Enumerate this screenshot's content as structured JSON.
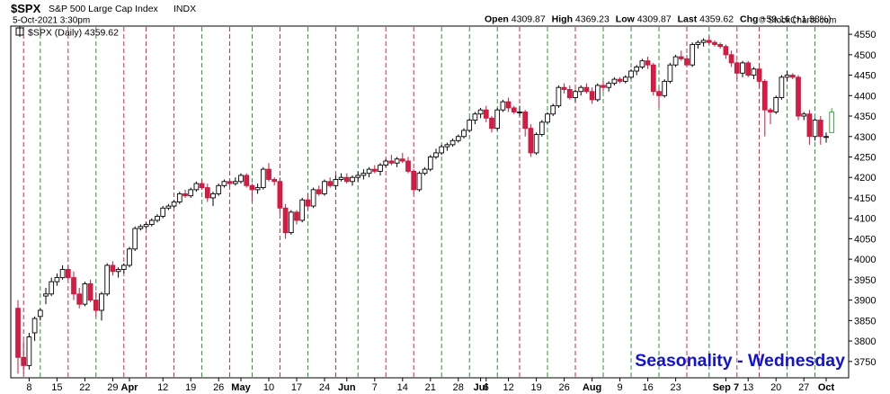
{
  "header": {
    "symbol": "$SPX",
    "name": "S&P 500 Large Cap Index",
    "exchange": "INDX",
    "datetime": "5-Oct-2021 3:30pm",
    "open_label": "Open",
    "open": "4309.87",
    "high_label": "High",
    "high": "4369.23",
    "low_label": "Low",
    "low": "4309.87",
    "last_label": "Last",
    "last": "4359.62",
    "chg_label": "Chg",
    "chg": "+59.16 (+1.38%)",
    "watermark": "© StockCharts.com",
    "legend": "$SPX (Daily) 4359.62"
  },
  "annotation": "Seasonality - Wednesday",
  "chart_data": {
    "type": "candlestick",
    "ylim": [
      3710,
      4570
    ],
    "y_ticks": [
      3750,
      3800,
      3850,
      3900,
      3950,
      4000,
      4050,
      4100,
      4150,
      4200,
      4250,
      4300,
      4350,
      4400,
      4450,
      4500,
      4550
    ],
    "x_labels": [
      {
        "label": "8",
        "bar": 2
      },
      {
        "label": "15",
        "bar": 7
      },
      {
        "label": "22",
        "bar": 12
      },
      {
        "label": "29",
        "bar": 17
      },
      {
        "label": "Apr",
        "bar": 20,
        "month": true
      },
      {
        "label": "12",
        "bar": 26
      },
      {
        "label": "19",
        "bar": 31
      },
      {
        "label": "26",
        "bar": 36
      },
      {
        "label": "May",
        "bar": 40,
        "month": true
      },
      {
        "label": "10",
        "bar": 45
      },
      {
        "label": "17",
        "bar": 50
      },
      {
        "label": "24",
        "bar": 55
      },
      {
        "label": "Jun",
        "bar": 59,
        "month": true
      },
      {
        "label": "7",
        "bar": 64
      },
      {
        "label": "14",
        "bar": 69
      },
      {
        "label": "21",
        "bar": 74
      },
      {
        "label": "28",
        "bar": 79
      },
      {
        "label": "Jul",
        "bar": 83,
        "month": true
      },
      {
        "label": "6",
        "bar": 84
      },
      {
        "label": "12",
        "bar": 88
      },
      {
        "label": "19",
        "bar": 93
      },
      {
        "label": "26",
        "bar": 98
      },
      {
        "label": "Aug",
        "bar": 103,
        "month": true
      },
      {
        "label": "9",
        "bar": 108
      },
      {
        "label": "16",
        "bar": 113
      },
      {
        "label": "23",
        "bar": 118
      },
      {
        "label": "Sep 7",
        "bar": 127,
        "month": true
      },
      {
        "label": "13",
        "bar": 131
      },
      {
        "label": "20",
        "bar": 136
      },
      {
        "label": "27",
        "bar": 141
      },
      {
        "label": "Oct",
        "bar": 145,
        "month": true
      }
    ],
    "wednesday_lines": [
      {
        "bar": 1,
        "color": "red"
      },
      {
        "bar": 4,
        "color": "green"
      },
      {
        "bar": 9,
        "color": "red"
      },
      {
        "bar": 14,
        "color": "green"
      },
      {
        "bar": 19,
        "color": "red"
      },
      {
        "bar": 23,
        "color": "red"
      },
      {
        "bar": 28,
        "color": "red"
      },
      {
        "bar": 33,
        "color": "green"
      },
      {
        "bar": 38,
        "color": "red"
      },
      {
        "bar": 42,
        "color": "green"
      },
      {
        "bar": 47,
        "color": "red"
      },
      {
        "bar": 52,
        "color": "green"
      },
      {
        "bar": 57,
        "color": "red"
      },
      {
        "bar": 61,
        "color": "green"
      },
      {
        "bar": 66,
        "color": "red"
      },
      {
        "bar": 71,
        "color": "red"
      },
      {
        "bar": 76,
        "color": "green"
      },
      {
        "bar": 81,
        "color": "green"
      },
      {
        "bar": 86,
        "color": "green"
      },
      {
        "bar": 90,
        "color": "red"
      },
      {
        "bar": 95,
        "color": "green"
      },
      {
        "bar": 100,
        "color": "red"
      },
      {
        "bar": 105,
        "color": "green"
      },
      {
        "bar": 110,
        "color": "green"
      },
      {
        "bar": 115,
        "color": "green"
      },
      {
        "bar": 120,
        "color": "red"
      },
      {
        "bar": 124,
        "color": "green"
      },
      {
        "bar": 129,
        "color": "red"
      },
      {
        "bar": 133,
        "color": "red"
      },
      {
        "bar": 138,
        "color": "green"
      },
      {
        "bar": 143,
        "color": "green"
      }
    ],
    "candles": [
      [
        3880,
        3900,
        3720,
        3760
      ],
      [
        3760,
        3800,
        3720,
        3740
      ],
      [
        3740,
        3820,
        3730,
        3810
      ],
      [
        3820,
        3860,
        3800,
        3855
      ],
      [
        3860,
        3880,
        3850,
        3875
      ],
      [
        3910,
        3930,
        3890,
        3915
      ],
      [
        3915,
        3955,
        3910,
        3945
      ],
      [
        3945,
        3965,
        3935,
        3955
      ],
      [
        3955,
        3985,
        3950,
        3975
      ],
      [
        3975,
        3985,
        3950,
        3955
      ],
      [
        3955,
        3970,
        3900,
        3915
      ],
      [
        3915,
        3930,
        3880,
        3890
      ],
      [
        3890,
        3945,
        3885,
        3940
      ],
      [
        3940,
        3950,
        3895,
        3900
      ],
      [
        3900,
        3920,
        3860,
        3875
      ],
      [
        3875,
        3920,
        3850,
        3915
      ],
      [
        3915,
        3990,
        3910,
        3985
      ],
      [
        3985,
        3995,
        3960,
        3970
      ],
      [
        3970,
        3980,
        3955,
        3975
      ],
      [
        3975,
        3990,
        3965,
        3985
      ],
      [
        3985,
        4030,
        3980,
        4025
      ],
      [
        4025,
        4080,
        4020,
        4075
      ],
      [
        4075,
        4085,
        4070,
        4080
      ],
      [
        4080,
        4090,
        4075,
        4085
      ],
      [
        4085,
        4100,
        4080,
        4095
      ],
      [
        4095,
        4110,
        4090,
        4105
      ],
      [
        4105,
        4130,
        4100,
        4125
      ],
      [
        4125,
        4135,
        4120,
        4130
      ],
      [
        4130,
        4145,
        4125,
        4140
      ],
      [
        4140,
        4165,
        4135,
        4160
      ],
      [
        4160,
        4170,
        4150,
        4155
      ],
      [
        4155,
        4175,
        4150,
        4170
      ],
      [
        4170,
        4190,
        4165,
        4185
      ],
      [
        4185,
        4195,
        4170,
        4175
      ],
      [
        4175,
        4185,
        4140,
        4150
      ],
      [
        4150,
        4165,
        4130,
        4160
      ],
      [
        4160,
        4185,
        4155,
        4180
      ],
      [
        4180,
        4195,
        4175,
        4190
      ],
      [
        4190,
        4195,
        4180,
        4185
      ],
      [
        4185,
        4200,
        4180,
        4190
      ],
      [
        4190,
        4210,
        4185,
        4205
      ],
      [
        4205,
        4210,
        4175,
        4180
      ],
      [
        4180,
        4185,
        4140,
        4170
      ],
      [
        4170,
        4185,
        4160,
        4175
      ],
      [
        4175,
        4225,
        4170,
        4220
      ],
      [
        4220,
        4235,
        4190,
        4195
      ],
      [
        4195,
        4200,
        4180,
        4190
      ],
      [
        4190,
        4200,
        4110,
        4125
      ],
      [
        4125,
        4135,
        4050,
        4065
      ],
      [
        4065,
        4120,
        4060,
        4115
      ],
      [
        4115,
        4120,
        4085,
        4095
      ],
      [
        4095,
        4150,
        4090,
        4145
      ],
      [
        4145,
        4160,
        4120,
        4130
      ],
      [
        4130,
        4175,
        4125,
        4170
      ],
      [
        4170,
        4180,
        4155,
        4160
      ],
      [
        4160,
        4195,
        4155,
        4190
      ],
      [
        4190,
        4200,
        4175,
        4180
      ],
      [
        4180,
        4205,
        4170,
        4195
      ],
      [
        4195,
        4210,
        4190,
        4200
      ],
      [
        4200,
        4210,
        4185,
        4190
      ],
      [
        4190,
        4205,
        4180,
        4200
      ],
      [
        4200,
        4215,
        4190,
        4205
      ],
      [
        4205,
        4220,
        4195,
        4210
      ],
      [
        4210,
        4225,
        4200,
        4220
      ],
      [
        4220,
        4230,
        4210,
        4215
      ],
      [
        4215,
        4235,
        4205,
        4230
      ],
      [
        4230,
        4245,
        4225,
        4240
      ],
      [
        4240,
        4255,
        4230,
        4235
      ],
      [
        4235,
        4250,
        4225,
        4245
      ],
      [
        4245,
        4260,
        4235,
        4240
      ],
      [
        4240,
        4250,
        4210,
        4215
      ],
      [
        4215,
        4220,
        4160,
        4170
      ],
      [
        4170,
        4215,
        4165,
        4210
      ],
      [
        4210,
        4225,
        4205,
        4220
      ],
      [
        4220,
        4255,
        4215,
        4250
      ],
      [
        4250,
        4270,
        4245,
        4260
      ],
      [
        4260,
        4280,
        4255,
        4275
      ],
      [
        4275,
        4285,
        4265,
        4280
      ],
      [
        4280,
        4295,
        4275,
        4290
      ],
      [
        4290,
        4305,
        4285,
        4300
      ],
      [
        4300,
        4320,
        4295,
        4315
      ],
      [
        4315,
        4345,
        4310,
        4340
      ],
      [
        4340,
        4360,
        4330,
        4355
      ],
      [
        4355,
        4370,
        4345,
        4365
      ],
      [
        4365,
        4375,
        4335,
        4345
      ],
      [
        4345,
        4350,
        4310,
        4320
      ],
      [
        4320,
        4370,
        4315,
        4365
      ],
      [
        4365,
        4390,
        4360,
        4385
      ],
      [
        4385,
        4395,
        4360,
        4370
      ],
      [
        4370,
        4375,
        4355,
        4360
      ],
      [
        4360,
        4375,
        4350,
        4360
      ],
      [
        4360,
        4365,
        4300,
        4320
      ],
      [
        4320,
        4330,
        4250,
        4260
      ],
      [
        4260,
        4310,
        4255,
        4305
      ],
      [
        4305,
        4340,
        4300,
        4335
      ],
      [
        4335,
        4360,
        4330,
        4355
      ],
      [
        4355,
        4380,
        4350,
        4375
      ],
      [
        4375,
        4425,
        4370,
        4420
      ],
      [
        4420,
        4430,
        4405,
        4415
      ],
      [
        4415,
        4425,
        4390,
        4395
      ],
      [
        4395,
        4415,
        4385,
        4410
      ],
      [
        4410,
        4425,
        4400,
        4420
      ],
      [
        4420,
        4430,
        4405,
        4410
      ],
      [
        4410,
        4420,
        4380,
        4390
      ],
      [
        4390,
        4430,
        4385,
        4425
      ],
      [
        4425,
        4435,
        4410,
        4420
      ],
      [
        4420,
        4435,
        4410,
        4430
      ],
      [
        4430,
        4445,
        4425,
        4440
      ],
      [
        4440,
        4445,
        4430,
        4435
      ],
      [
        4435,
        4450,
        4430,
        4445
      ],
      [
        4445,
        4465,
        4440,
        4460
      ],
      [
        4460,
        4475,
        4450,
        4470
      ],
      [
        4470,
        4490,
        4465,
        4485
      ],
      [
        4485,
        4495,
        4465,
        4475
      ],
      [
        4475,
        4480,
        4400,
        4410
      ],
      [
        4410,
        4420,
        4370,
        4400
      ],
      [
        4400,
        4440,
        4395,
        4435
      ],
      [
        4435,
        4480,
        4430,
        4475
      ],
      [
        4475,
        4500,
        4470,
        4495
      ],
      [
        4495,
        4510,
        4485,
        4490
      ],
      [
        4490,
        4500,
        4470,
        4475
      ],
      [
        4475,
        4530,
        4470,
        4525
      ],
      [
        4525,
        4535,
        4515,
        4530
      ],
      [
        4530,
        4540,
        4520,
        4535
      ],
      [
        4535,
        4545,
        4525,
        4530
      ],
      [
        4530,
        4535,
        4520,
        4525
      ],
      [
        4525,
        4530,
        4515,
        4520
      ],
      [
        4520,
        4525,
        4490,
        4500
      ],
      [
        4500,
        4510,
        4470,
        4480
      ],
      [
        4480,
        4485,
        4440,
        4455
      ],
      [
        4455,
        4485,
        4445,
        4480
      ],
      [
        4480,
        4485,
        4445,
        4450
      ],
      [
        4450,
        4470,
        4440,
        4465
      ],
      [
        4465,
        4470,
        4420,
        4435
      ],
      [
        4435,
        4440,
        4300,
        4365
      ],
      [
        4365,
        4370,
        4330,
        4360
      ],
      [
        4360,
        4400,
        4355,
        4395
      ],
      [
        4395,
        4450,
        4390,
        4445
      ],
      [
        4445,
        4460,
        4435,
        4450
      ],
      [
        4450,
        4455,
        4440,
        4445
      ],
      [
        4445,
        4450,
        4340,
        4350
      ],
      [
        4350,
        4360,
        4340,
        4355
      ],
      [
        4355,
        4365,
        4280,
        4300
      ],
      [
        4300,
        4345,
        4290,
        4340
      ],
      [
        4340,
        4350,
        4280,
        4300
      ],
      [
        4300,
        4310,
        4285,
        4300
      ],
      [
        4309.87,
        4369.23,
        4309.87,
        4359.62
      ]
    ]
  }
}
